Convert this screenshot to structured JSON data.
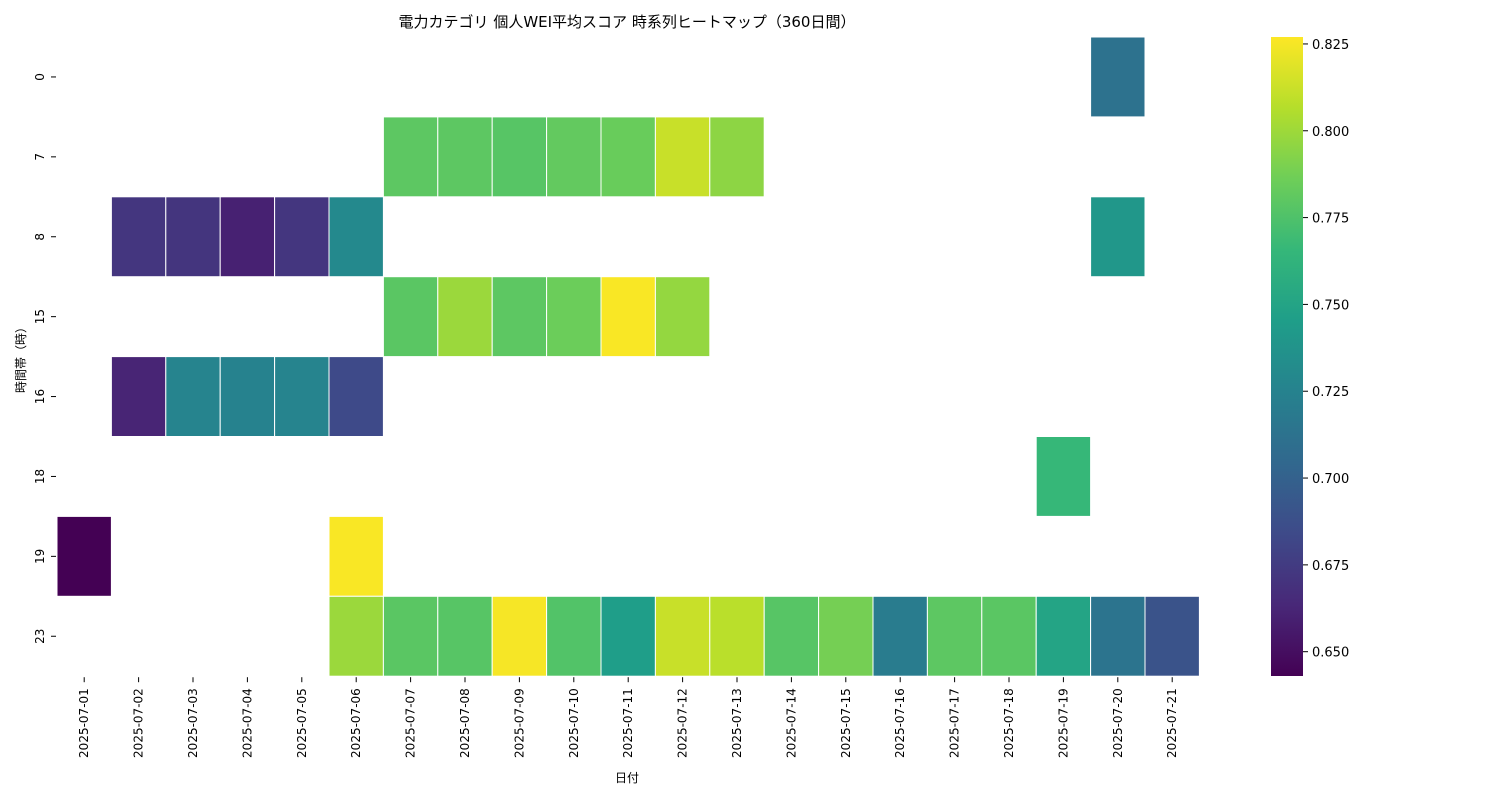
{
  "chart_data": {
    "type": "heatmap",
    "title": "電力カテゴリ 個人WEI平均スコア 時系列ヒートマップ（360日間）",
    "xlabel": "日付",
    "ylabel": "時間帯（時）",
    "x_categories": [
      "2025-07-01",
      "2025-07-02",
      "2025-07-03",
      "2025-07-04",
      "2025-07-05",
      "2025-07-06",
      "2025-07-07",
      "2025-07-08",
      "2025-07-09",
      "2025-07-10",
      "2025-07-11",
      "2025-07-12",
      "2025-07-13",
      "2025-07-14",
      "2025-07-15",
      "2025-07-16",
      "2025-07-17",
      "2025-07-18",
      "2025-07-19",
      "2025-07-20",
      "2025-07-21"
    ],
    "y_categories": [
      "0",
      "7",
      "8",
      "15",
      "16",
      "18",
      "19",
      "23"
    ],
    "values": [
      [
        null,
        null,
        null,
        null,
        null,
        null,
        null,
        null,
        null,
        null,
        null,
        null,
        null,
        null,
        null,
        null,
        null,
        null,
        null,
        0.712,
        null
      ],
      [
        null,
        null,
        null,
        null,
        null,
        null,
        0.78,
        0.78,
        0.778,
        0.782,
        0.784,
        0.812,
        0.795,
        null,
        null,
        null,
        null,
        null,
        null,
        null,
        null
      ],
      [
        null,
        0.672,
        0.671,
        0.66,
        0.672,
        0.73,
        null,
        null,
        null,
        null,
        null,
        null,
        null,
        null,
        null,
        null,
        null,
        null,
        null,
        0.74,
        null
      ],
      [
        null,
        null,
        null,
        null,
        null,
        null,
        0.779,
        0.799,
        0.78,
        0.785,
        0.826,
        0.797,
        null,
        null,
        null,
        null,
        null,
        null,
        null,
        null,
        null
      ],
      [
        null,
        0.662,
        0.726,
        0.725,
        0.726,
        0.684,
        null,
        null,
        null,
        null,
        null,
        null,
        null,
        null,
        null,
        null,
        null,
        null,
        null,
        null,
        null
      ],
      [
        null,
        null,
        null,
        null,
        null,
        null,
        null,
        null,
        null,
        null,
        null,
        null,
        null,
        null,
        null,
        null,
        null,
        null,
        0.766,
        null,
        null
      ],
      [
        0.643,
        null,
        null,
        null,
        null,
        0.826,
        null,
        null,
        null,
        null,
        null,
        null,
        null,
        null,
        null,
        null,
        null,
        null,
        null,
        null,
        null
      ],
      [
        null,
        null,
        null,
        null,
        null,
        0.799,
        0.779,
        0.778,
        0.825,
        0.776,
        0.745,
        0.812,
        0.808,
        0.778,
        0.788,
        0.72,
        0.78,
        0.779,
        0.75,
        0.714,
        0.69
      ]
    ],
    "colormap": "viridis",
    "vmin": 0.643,
    "vmax": 0.827,
    "colorbar_ticks": [
      0.65,
      0.675,
      0.7,
      0.725,
      0.75,
      0.775,
      0.8,
      0.825
    ],
    "colorbar_tick_labels": [
      "0.650",
      "0.675",
      "0.700",
      "0.725",
      "0.750",
      "0.775",
      "0.800",
      "0.825"
    ]
  }
}
